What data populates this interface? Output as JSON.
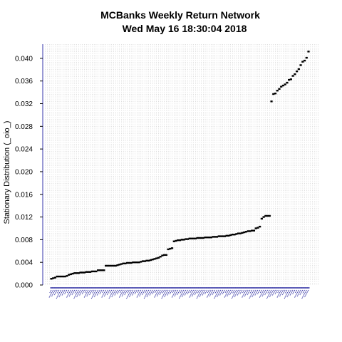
{
  "chart_data": {
    "type": "scatter",
    "title_line1": "MCBanks  Weekly Return Network",
    "title_line2": "Wed May 16 18:30:04 2018",
    "xlabel": "",
    "ylabel": "Stationary Distribution (_oio_)",
    "ylim": [
      0.0,
      0.0425
    ],
    "y_ticks": [
      "0.000",
      "0.004",
      "0.008",
      "0.012",
      "0.016",
      "0.020",
      "0.024",
      "0.028",
      "0.032",
      "0.036",
      "0.040"
    ],
    "grid": "vertical dotted lines at every point",
    "point_color": "#000000",
    "axis_color": "#3333aa",
    "x_tick_color": "#1a1a99",
    "y": [
      0.0011,
      0.0012,
      0.0013,
      0.0015,
      0.0015,
      0.0015,
      0.0015,
      0.0015,
      0.0016,
      0.0018,
      0.0019,
      0.002,
      0.0021,
      0.0021,
      0.0021,
      0.0022,
      0.0022,
      0.0022,
      0.0023,
      0.0023,
      0.0023,
      0.0024,
      0.0024,
      0.0024,
      0.0026,
      0.0026,
      0.0026,
      0.0026,
      0.0034,
      0.0034,
      0.0034,
      0.0034,
      0.0034,
      0.0034,
      0.0035,
      0.0036,
      0.0037,
      0.0038,
      0.0038,
      0.0039,
      0.0039,
      0.0039,
      0.004,
      0.004,
      0.004,
      0.004,
      0.0041,
      0.0042,
      0.0042,
      0.0043,
      0.0043,
      0.0044,
      0.0045,
      0.0046,
      0.0047,
      0.0048,
      0.005,
      0.0052,
      0.0053,
      0.0053,
      0.0063,
      0.0064,
      0.0065,
      0.0077,
      0.0078,
      0.0079,
      0.0079,
      0.008,
      0.008,
      0.0081,
      0.0081,
      0.0082,
      0.0082,
      0.0082,
      0.0082,
      0.0083,
      0.0083,
      0.0083,
      0.0083,
      0.0084,
      0.0084,
      0.0084,
      0.0084,
      0.0085,
      0.0085,
      0.0085,
      0.0086,
      0.0086,
      0.0086,
      0.0086,
      0.0087,
      0.0087,
      0.0088,
      0.0089,
      0.0089,
      0.009,
      0.0091,
      0.0091,
      0.0092,
      0.0093,
      0.0094,
      0.0095,
      0.0095,
      0.0096,
      0.0096,
      0.01,
      0.0101,
      0.0103,
      0.0117,
      0.012,
      0.0122,
      0.0122,
      0.0122,
      0.0324,
      0.0337,
      0.0338,
      0.0343,
      0.0346,
      0.035,
      0.0352,
      0.0354,
      0.0357,
      0.0362,
      0.0363,
      0.0369,
      0.0372,
      0.0377,
      0.0381,
      0.0388,
      0.0394,
      0.0396,
      0.0401,
      0.0412
    ]
  }
}
